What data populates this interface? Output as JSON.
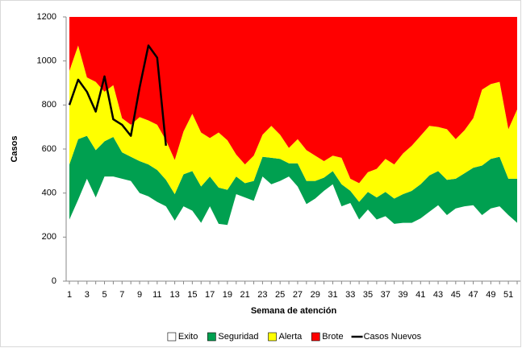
{
  "chart_data": {
    "type": "area",
    "stacked": true,
    "x_label": "Semana de atención",
    "y_label": "Casos",
    "categories": [
      1,
      null,
      3,
      null,
      5,
      null,
      7,
      null,
      9,
      null,
      11,
      null,
      13,
      null,
      15,
      null,
      17,
      null,
      19,
      null,
      21,
      null,
      23,
      null,
      25,
      null,
      27,
      null,
      29,
      null,
      31,
      null,
      33,
      null,
      35,
      null,
      37,
      null,
      39,
      null,
      41,
      null,
      43,
      null,
      45,
      null,
      47,
      null,
      49,
      null,
      51,
      null
    ],
    "ylim": [
      0,
      1200
    ],
    "yticks": [
      0,
      200,
      400,
      600,
      800,
      1000,
      1200
    ],
    "series": [
      {
        "name": "Exito",
        "color": "#ffffff",
        "type": "area",
        "values": [
          280,
          370,
          465,
          380,
          475,
          475,
          465,
          455,
          400,
          385,
          360,
          340,
          275,
          340,
          320,
          265,
          340,
          260,
          255,
          395,
          380,
          365,
          475,
          440,
          455,
          475,
          430,
          350,
          375,
          410,
          440,
          340,
          355,
          280,
          325,
          280,
          295,
          260,
          265,
          265,
          285,
          315,
          345,
          300,
          330,
          340,
          345,
          300,
          330,
          340,
          300,
          265
        ]
      },
      {
        "name": "Seguridad",
        "color": "#00a050",
        "type": "area",
        "values": [
          250,
          275,
          195,
          215,
          160,
          180,
          120,
          110,
          145,
          145,
          145,
          120,
          120,
          145,
          180,
          165,
          135,
          165,
          160,
          80,
          65,
          90,
          90,
          120,
          100,
          60,
          105,
          105,
          80,
          60,
          60,
          100,
          55,
          80,
          80,
          100,
          110,
          115,
          130,
          145,
          155,
          165,
          155,
          160,
          135,
          150,
          170,
          225,
          225,
          225,
          165,
          200
        ]
      },
      {
        "name": "Alerta",
        "color": "#ffff00",
        "type": "area",
        "values": [
          425,
          425,
          265,
          310,
          225,
          235,
          155,
          145,
          200,
          200,
          205,
          180,
          155,
          195,
          260,
          245,
          175,
          250,
          225,
          100,
          85,
          115,
          100,
          145,
          110,
          70,
          110,
          140,
          115,
          75,
          70,
          120,
          55,
          85,
          90,
          130,
          150,
          155,
          185,
          205,
          220,
          225,
          200,
          230,
          180,
          195,
          225,
          345,
          340,
          340,
          225,
          315
        ]
      },
      {
        "name": "Brote",
        "color": "#ff0000",
        "type": "area",
        "values": [
          245,
          130,
          275,
          295,
          340,
          310,
          460,
          490,
          455,
          470,
          490,
          560,
          650,
          520,
          440,
          525,
          550,
          525,
          560,
          625,
          670,
          630,
          535,
          495,
          535,
          595,
          555,
          605,
          630,
          655,
          630,
          640,
          735,
          755,
          705,
          690,
          645,
          670,
          620,
          585,
          540,
          495,
          500,
          510,
          555,
          515,
          460,
          330,
          305,
          295,
          510,
          420
        ]
      },
      {
        "name": "Casos Nuevos",
        "color": "#000000",
        "type": "line",
        "values": [
          800,
          915,
          860,
          770,
          930,
          735,
          710,
          660,
          880,
          1070,
          1015,
          615,
          null,
          null,
          null,
          null,
          null,
          null,
          null,
          null,
          null,
          null,
          null,
          null,
          null,
          null,
          null,
          null,
          null,
          null,
          null,
          null,
          null,
          null,
          null,
          null,
          null,
          null,
          null,
          null,
          null,
          null,
          null,
          null,
          null,
          null,
          null,
          null,
          null,
          null,
          null,
          null
        ]
      }
    ],
    "legend": "bottom"
  }
}
